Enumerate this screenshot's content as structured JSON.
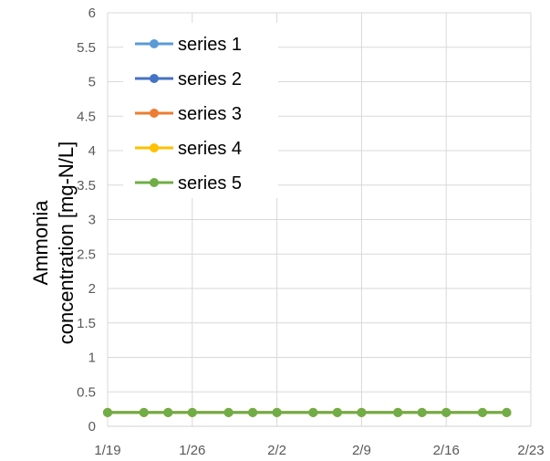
{
  "chart_data": {
    "type": "line",
    "title": "",
    "xlabel": "",
    "ylabel_line1": "Ammonia",
    "ylabel_line2": "concentration",
    "ylabel_unit": "[mg-N/L]",
    "x_ticks": [
      "1/19",
      "1/26",
      "2/2",
      "2/9",
      "2/16",
      "2/23"
    ],
    "x_tick_days": [
      0,
      7,
      14,
      21,
      28,
      35
    ],
    "xlim_days": [
      0,
      35
    ],
    "y_ticks": [
      "0",
      "0.5",
      "1",
      "1.5",
      "2",
      "2.5",
      "3",
      "3.5",
      "4",
      "4.5",
      "5",
      "5.5",
      "6"
    ],
    "ylim": [
      0,
      6
    ],
    "grid": true,
    "legend_position": "top-left",
    "x": [
      "1/19",
      "1/22",
      "1/24",
      "1/26",
      "1/29",
      "1/31",
      "2/2",
      "2/5",
      "2/7",
      "2/9",
      "2/12",
      "2/14",
      "2/16",
      "2/19",
      "2/21"
    ],
    "x_days": [
      0,
      3,
      5,
      7,
      10,
      12,
      14,
      17,
      19,
      21,
      24,
      26,
      28,
      31,
      33
    ],
    "series": [
      {
        "name": "series 1",
        "color": "#5B9BD5",
        "values": [
          0.2,
          0.2,
          0.2,
          0.2,
          0.2,
          0.2,
          0.2,
          0.2,
          0.2,
          0.2,
          0.2,
          0.2,
          0.2,
          0.2,
          0.2
        ]
      },
      {
        "name": "series 2",
        "color": "#4472C4",
        "values": [
          0.2,
          0.2,
          0.2,
          0.2,
          0.2,
          0.2,
          0.2,
          0.2,
          0.2,
          0.2,
          0.2,
          0.2,
          0.2,
          0.2,
          0.2
        ]
      },
      {
        "name": "series 3",
        "color": "#ED7D31",
        "values": [
          0.2,
          0.2,
          0.2,
          0.2,
          0.2,
          0.2,
          0.2,
          0.2,
          0.2,
          0.2,
          0.2,
          0.2,
          0.2,
          0.2,
          0.2
        ]
      },
      {
        "name": "series 4",
        "color": "#FFC000",
        "values": [
          0.2,
          0.2,
          0.2,
          0.2,
          0.2,
          0.2,
          0.2,
          0.2,
          0.2,
          0.2,
          0.2,
          0.2,
          0.2,
          0.2,
          0.2
        ]
      },
      {
        "name": "series 5",
        "color": "#70AD47",
        "values": [
          0.2,
          0.2,
          0.2,
          0.2,
          0.2,
          0.2,
          0.2,
          0.2,
          0.2,
          0.2,
          0.2,
          0.2,
          0.2,
          0.2,
          0.2
        ]
      }
    ]
  }
}
